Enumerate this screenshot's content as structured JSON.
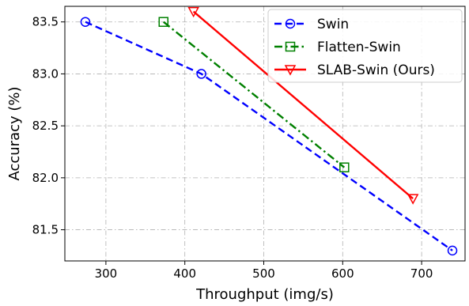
{
  "chart_data": {
    "type": "line",
    "xlabel": "Throughput (img/s)",
    "ylabel": "Accuracy (%)",
    "xlim": [
      248,
      755
    ],
    "ylim": [
      81.2,
      83.65
    ],
    "x_ticks": [
      "300",
      "400",
      "500",
      "600",
      "700"
    ],
    "y_ticks": [
      "81.5",
      "82.0",
      "82.5",
      "83.0",
      "83.5"
    ],
    "grid": true,
    "legend_position": "top-right",
    "series": [
      {
        "name": "Swin",
        "color": "#0000ff",
        "line_style": "dashed",
        "marker": "circle",
        "points": [
          [
            274,
            83.5
          ],
          [
            421,
            83.0
          ],
          [
            739,
            81.3
          ]
        ]
      },
      {
        "name": "Flatten-Swin",
        "color": "#008000",
        "line_style": "dash-dot",
        "marker": "square",
        "points": [
          [
            373,
            83.5
          ],
          [
            602,
            82.1
          ]
        ]
      },
      {
        "name": "SLAB-Swin (Ours)",
        "color": "#ff0000",
        "line_style": "solid",
        "marker": "triangle-down",
        "points": [
          [
            411,
            83.6
          ],
          [
            689,
            81.8
          ]
        ]
      }
    ]
  }
}
